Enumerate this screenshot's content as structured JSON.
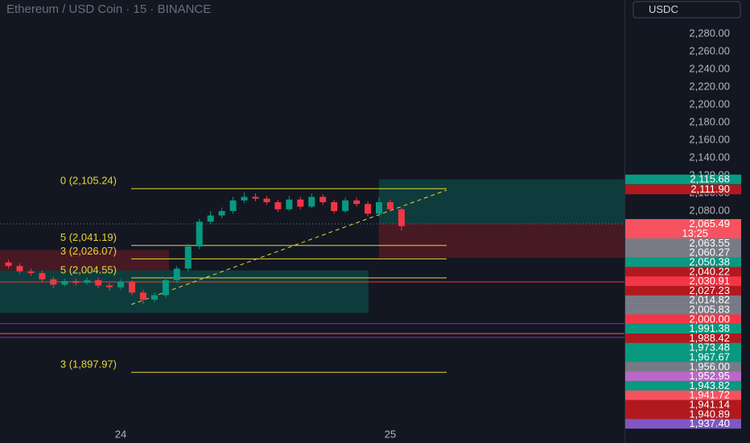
{
  "chart_data": {
    "type": "candlestick",
    "title": "Ethereum / USD Coin · 15 · BINANCE",
    "currency": "USDC",
    "countdown": "13:25",
    "xlim": [
      23.552,
      25.869
    ],
    "ylim": [
      1836.4,
      2318.2
    ],
    "xticks": [
      24,
      25
    ],
    "yticks": [
      {
        "value": 2280,
        "label": "2,280.00"
      },
      {
        "value": 2260,
        "label": "2,260.00"
      },
      {
        "value": 2240,
        "label": "2,240.00"
      },
      {
        "value": 2220,
        "label": "2,220.00"
      },
      {
        "value": 2200,
        "label": "2,200.00"
      },
      {
        "value": 2180,
        "label": "2,180.00"
      },
      {
        "value": 2160,
        "label": "2,160.00"
      },
      {
        "value": 2140,
        "label": "2,140.00"
      },
      {
        "value": 2120,
        "label": "2,120.00"
      },
      {
        "value": 2100,
        "label": "2,100.00"
      },
      {
        "value": 2080,
        "label": "2,080.00"
      }
    ],
    "up_color": "#089981",
    "down_color": "#f23645",
    "x": [
      23.5833,
      23.625,
      23.6667,
      23.7083,
      23.75,
      23.7917,
      23.8333,
      23.875,
      23.9167,
      23.9583,
      24,
      24.0417,
      24.0833,
      24.125,
      24.1667,
      24.2083,
      24.25,
      24.2917,
      24.3333,
      24.375,
      24.4167,
      24.4583,
      24.5,
      24.5417,
      24.5833,
      24.625,
      24.6667,
      24.7083,
      24.75,
      24.7917,
      24.8333,
      24.875,
      24.9167,
      24.9583,
      25,
      25.0417
    ],
    "open": [
      2022,
      2018,
      2012,
      2010,
      2003,
      1997,
      2001,
      1999,
      2002,
      1996,
      1994,
      2000,
      1988,
      1980,
      1985,
      2002,
      2015,
      2040,
      2068,
      2075,
      2080,
      2092,
      2096,
      2094,
      2090,
      2082,
      2093,
      2085,
      2096,
      2090,
      2080,
      2092,
      2088,
      2077,
      2090,
      2082
    ],
    "high": [
      2025,
      2021,
      2015,
      2013,
      2006,
      2004,
      2004,
      2005,
      2005,
      1999,
      2003,
      2002,
      1991,
      1988,
      2005,
      2018,
      2043,
      2071,
      2080,
      2084,
      2096,
      2101,
      2100,
      2097,
      2093,
      2097,
      2096,
      2100,
      2099,
      2093,
      2095,
      2095,
      2091,
      2096,
      2093,
      2084
    ],
    "low": [
      2015,
      2009,
      2007,
      2000,
      1993,
      1995,
      1996,
      1997,
      1993,
      1990,
      1991,
      1985,
      1975,
      1977,
      1982,
      1999,
      2012,
      2037,
      2065,
      2072,
      2077,
      2089,
      2091,
      2087,
      2079,
      2080,
      2082,
      2083,
      2087,
      2077,
      2078,
      2085,
      2074,
      2074,
      2079,
      2058
    ],
    "close": [
      2018,
      2012,
      2010,
      2003,
      1997,
      2001,
      1999,
      2002,
      1996,
      1994,
      2000,
      1988,
      1980,
      1985,
      2002,
      2015,
      2040,
      2068,
      2075,
      2080,
      2092,
      2096,
      2094,
      2090,
      2082,
      2093,
      2085,
      2096,
      2090,
      2080,
      2092,
      2088,
      2077,
      2090,
      2082,
      2063
    ],
    "levels": [
      {
        "value": 2105.24,
        "label": "0 (2,105.24)"
      },
      {
        "value": 2041.19,
        "label": "5 (2,041.19)"
      },
      {
        "value": 2026.07,
        "label": "3 (2,026.07)"
      },
      {
        "value": 2004.55,
        "label": "5 (2,004.55)"
      },
      {
        "value": 1897.97,
        "label": "3 (1,897.97)"
      }
    ],
    "level_color": "#e8d43a",
    "zones": [
      {
        "x": [
          23.552,
          24.919
        ],
        "y": [
          2013,
          1965
        ],
        "color": "#0d4a45"
      },
      {
        "x": [
          23.552,
          24.179
        ],
        "y": [
          2036,
          2013
        ],
        "color": "#5a1c24"
      },
      {
        "x": [
          24.958,
          25.869
        ],
        "y": [
          2115.68,
          2065.49
        ],
        "color": "#0d4a45"
      },
      {
        "x": [
          24.958,
          25.869
        ],
        "y": [
          2065.49,
          2027.23
        ],
        "color": "#5a1c24"
      }
    ],
    "trendline": {
      "x": [
        24.039,
        25.209
      ],
      "y": [
        1974.5,
        2103.6
      ],
      "color": "#e8d43a"
    },
    "last_price": 2065.49,
    "price_lines": [
      {
        "value": 2000,
        "color": "#f23645"
      },
      {
        "value": 1952.95,
        "color": "#9c27b0"
      },
      {
        "value": 1941.72,
        "color": "#f7525f"
      },
      {
        "value": 1937.4,
        "color": "#9c27b0"
      }
    ],
    "price_labels": [
      {
        "value": 2115.68,
        "label": "2,115.68",
        "color": "#089981"
      },
      {
        "value": 2111.9,
        "label": "2,111.90",
        "color": "#b2191f"
      },
      {
        "value": 2065.49,
        "label": "2,065.49",
        "color": "#f7525f"
      },
      {
        "value": 2063.55,
        "label": "2,063.55",
        "color": "#787b86"
      },
      {
        "value": 2060.27,
        "label": "2,060.27",
        "color": "#787b86"
      },
      {
        "value": 2050.38,
        "label": "2,050.38",
        "color": "#089981"
      },
      {
        "value": 2040.22,
        "label": "2,040.22",
        "color": "#b2191f"
      },
      {
        "value": 2030.91,
        "label": "2,030.91",
        "color": "#f23645"
      },
      {
        "value": 2027.23,
        "label": "2,027.23",
        "color": "#b2191f"
      },
      {
        "value": 2014.82,
        "label": "2,014.82",
        "color": "#787b86"
      },
      {
        "value": 2005.83,
        "label": "2,005.83",
        "color": "#787b86"
      },
      {
        "value": 2000,
        "label": "2,000.00",
        "color": "#f23645"
      },
      {
        "value": 1991.38,
        "label": "1,991.38",
        "color": "#089981"
      },
      {
        "value": 1988.42,
        "label": "1,988.42",
        "color": "#b2191f"
      },
      {
        "value": 1973.48,
        "label": "1,973.48",
        "color": "#089981"
      },
      {
        "value": 1967.67,
        "label": "1,967.67",
        "color": "#089981"
      },
      {
        "value": 1956,
        "label": "1,956.00",
        "color": "#787b86"
      },
      {
        "value": 1952.95,
        "label": "1,952.95",
        "color": "#ba68c8"
      },
      {
        "value": 1943.82,
        "label": "1,943.82",
        "color": "#089981"
      },
      {
        "value": 1941.72,
        "label": "1,941.72",
        "color": "#f7525f"
      },
      {
        "value": 1941.14,
        "label": "1,941.14",
        "color": "#b2191f"
      },
      {
        "value": 1940.89,
        "label": "1,940.89",
        "color": "#b2191f"
      },
      {
        "value": 1937.4,
        "label": "1,937.40",
        "color": "#7e57c2"
      }
    ]
  }
}
